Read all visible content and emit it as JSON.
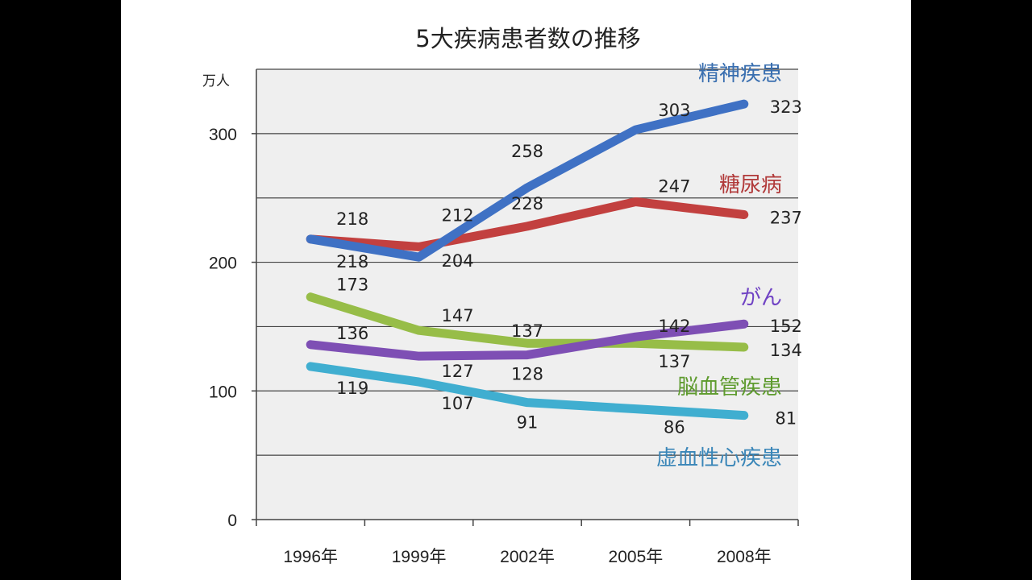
{
  "chart_data": {
    "type": "line",
    "title": "5大疾病患者数の推移",
    "unit_label": "万人",
    "categories": [
      "1996年",
      "1999年",
      "2002年",
      "2005年",
      "2008年"
    ],
    "ylim": [
      0,
      350
    ],
    "y_ticks": [
      "0",
      "100",
      "200",
      "300"
    ],
    "grid": true,
    "series": [
      {
        "name": "精神疾患",
        "color": "#3f71c4",
        "values": [
          218,
          204,
          258,
          303,
          323
        ],
        "labels": [
          "218",
          "204",
          "258",
          "303",
          "323"
        ]
      },
      {
        "name": "糖尿病",
        "color": "#c2403f",
        "values": [
          218,
          212,
          228,
          247,
          237
        ],
        "labels": [
          "218",
          "212",
          "228",
          "247",
          "237"
        ]
      },
      {
        "name": "がん",
        "color": "#7e4fb4",
        "values": [
          136,
          127,
          128,
          142,
          152
        ],
        "labels": [
          "136",
          "127",
          "128",
          "142",
          "152"
        ]
      },
      {
        "name": "脳血管疾患",
        "color": "#97bd48",
        "values": [
          173,
          147,
          137,
          137,
          134
        ],
        "labels": [
          "173",
          "147",
          "137",
          "137",
          "134"
        ]
      },
      {
        "name": "虚血性心疾患",
        "color": "#40aed0",
        "values": [
          119,
          107,
          91,
          86,
          81
        ],
        "labels": [
          "119",
          "107",
          "91",
          "86",
          "81"
        ]
      }
    ]
  },
  "colors": {
    "plot_background": "#efefef",
    "gridline": "#444444",
    "label_name_精神疾患": "#3a6fb0",
    "label_name_糖尿病": "#b13a3a",
    "label_name_がん": "#7043c4",
    "label_name_脳血管疾患": "#5e9b2e",
    "label_name_虚血性心疾患": "#3a86b8"
  }
}
